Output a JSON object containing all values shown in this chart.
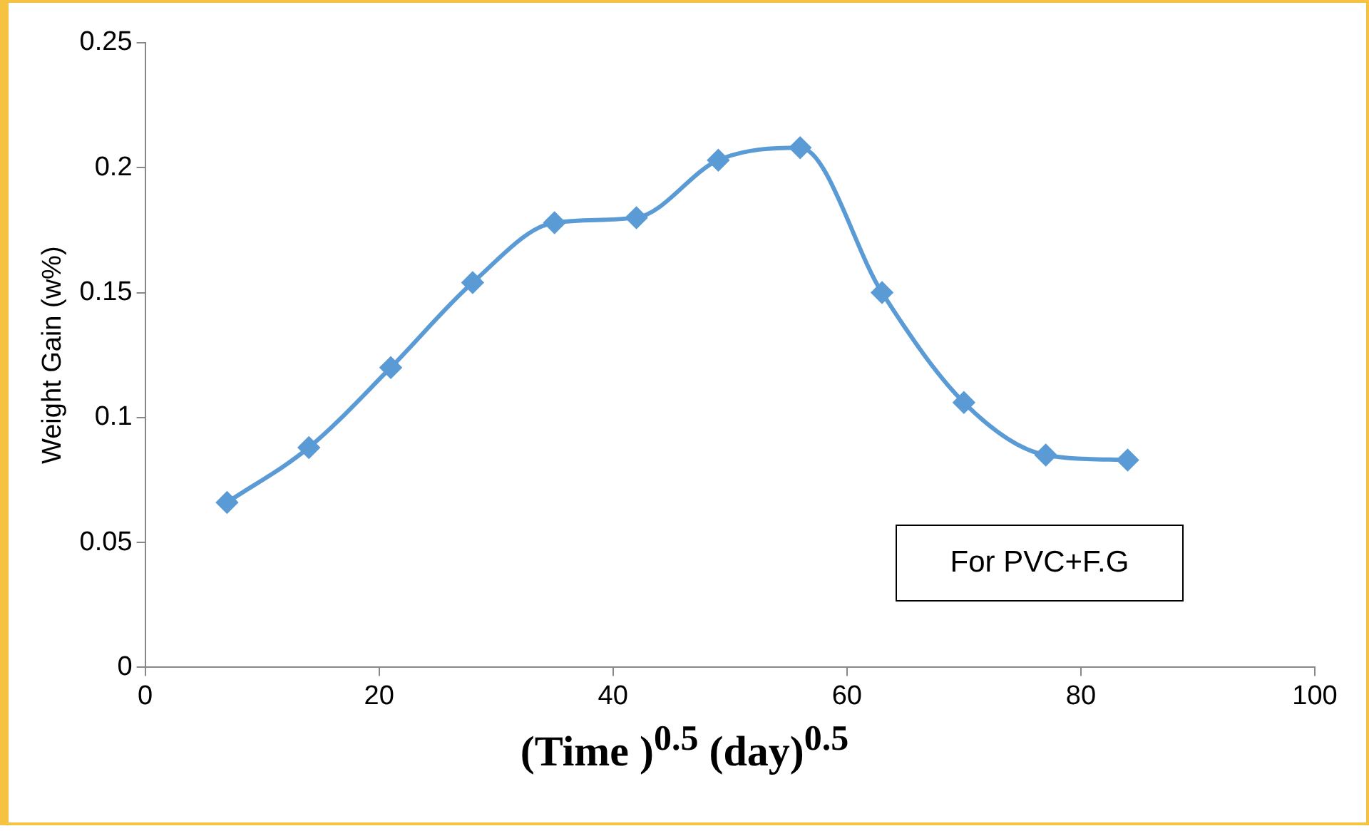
{
  "chart_data": {
    "type": "line",
    "xlabel": "(Time )$^{0.5}$ (day)$^{0.5}$",
    "ylabel": "Weight Gain (w%)",
    "annotations": [
      "For PVC+F.G"
    ],
    "x": [
      7,
      14,
      21,
      28,
      35,
      42,
      49,
      56,
      63,
      70,
      77,
      84
    ],
    "series": [
      {
        "color": "#5b9bd5",
        "values": [
          0.066,
          0.088,
          0.12,
          0.154,
          0.178,
          0.18,
          0.203,
          0.208,
          0.15,
          0.106,
          0.085,
          0.083
        ]
      }
    ],
    "xlim": [
      0,
      100
    ],
    "xticks": [
      0,
      20,
      40,
      60,
      80,
      100
    ],
    "ylim": [
      0,
      0.25
    ],
    "yticks": [
      0,
      0.05,
      0.1,
      0.15,
      0.2,
      0.25
    ],
    "grid": false,
    "legend": false,
    "marker": "diamond",
    "line_style": "solid"
  }
}
